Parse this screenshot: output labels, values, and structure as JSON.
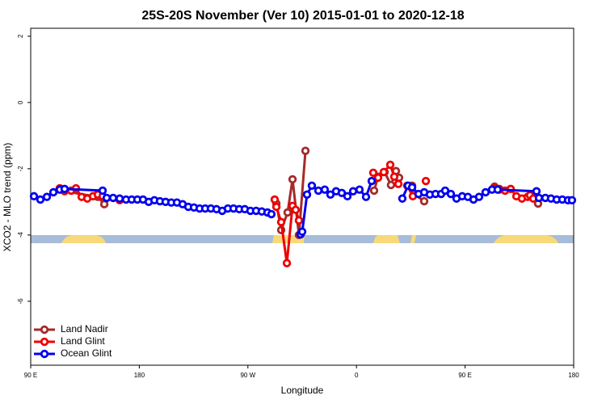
{
  "chart_data": {
    "type": "line",
    "title": "25S-20S November (Ver 10)   2015-01-01 to 2020-12-18",
    "x_label": "Longitude",
    "y_label": "XCO2 - MLO trend (ppm)",
    "xlim": [
      90,
      540
    ],
    "ylim": [
      -7.93,
      2.24
    ],
    "xticks": [
      {
        "value": 90,
        "label": "90 E"
      },
      180,
      {
        "value": 270,
        "label": "90 W"
      },
      {
        "value": 360,
        "label": "0"
      },
      {
        "value": 450,
        "label": "90 E"
      },
      {
        "value": 540,
        "label": "180"
      }
    ],
    "yticks": [
      2,
      0,
      -2,
      -4,
      -6
    ],
    "legend": "bottom-left",
    "series": [
      {
        "name": "Land Nadir",
        "color": "#a52a2a",
        "x": [
          114.1,
          118.1,
          145.6,
          151,
          null,
          293.6,
          297.6,
          302.9,
          307,
          312.3,
          317.7,
          null,
          374.6,
          377.9,
          383.3,
          388.6,
          392.7,
          395.3,
          null,
          406.1,
          407.5,
          416.1,
          null,
          474.4,
          478.4,
          null,
          506.5,
          510.5
        ],
        "values": [
          -2.59,
          -2.68,
          -2.85,
          -3.07,
          null,
          -3.05,
          -3.85,
          -3.32,
          -2.32,
          -4.0,
          -1.46,
          null,
          -2.66,
          -2.24,
          -2.1,
          -2.49,
          -2.07,
          -2.27,
          null,
          -2.51,
          -2.76,
          -2.98,
          null,
          -2.54,
          -2.61,
          null,
          -2.88,
          -3.05
        ]
      },
      {
        "name": "Land Glint",
        "color": "#ee0000",
        "x": [
          114.1,
          118.1,
          123.5,
          127.5,
          132.2,
          136.9,
          141.6,
          145.6,
          149.6,
          163.7,
          null,
          292.2,
          293.6,
          297.6,
          302.3,
          307,
          309.6,
          312.3,
          null,
          373.9,
          377.9,
          382.6,
          388,
          391.3,
          394.7,
          null,
          402,
          406.7,
          null,
          417.5,
          null,
          474.4,
          478.4,
          483.1,
          487.8,
          492.5,
          497.1,
          501.8,
          503.8,
          506.5
        ],
        "values": [
          -2.59,
          -2.66,
          -2.66,
          -2.59,
          -2.85,
          -2.9,
          -2.83,
          -2.78,
          -2.83,
          -2.95,
          null,
          -2.93,
          -3.15,
          -3.61,
          -4.85,
          -3.12,
          -3.24,
          -3.56,
          null,
          -2.12,
          -2.27,
          -2.1,
          -1.88,
          -2.24,
          -2.46,
          null,
          -2.51,
          -2.83,
          null,
          -2.37,
          null,
          -2.59,
          -2.63,
          -2.66,
          -2.61,
          -2.83,
          -2.9,
          -2.85,
          -2.8,
          -2.9
        ]
      },
      {
        "name": "Ocean Glint",
        "color": "#0000ee",
        "x": [
          92.7,
          98.0,
          103.4,
          108.8,
          114.1,
          118.1,
          149.6,
          153,
          158.3,
          163.7,
          169,
          173.7,
          178.4,
          183.1,
          187.8,
          192.5,
          197.1,
          201.8,
          206.5,
          211.2,
          215.9,
          220.6,
          225.3,
          230,
          234.6,
          239.3,
          244,
          248.7,
          253.4,
          258.1,
          262.8,
          267.4,
          272.1,
          276.8,
          281.5,
          286.2,
          289.5,
          null,
          313.7,
          315,
          319,
          323,
          328.4,
          333.7,
          338.4,
          343.1,
          347.8,
          352.5,
          357.2,
          362.5,
          367.9,
          372.6,
          null,
          398,
          402.7,
          406.1,
          411.4,
          416.1,
          420.8,
          425.5,
          430.2,
          433.5,
          438.2,
          442.9,
          447.6,
          452.3,
          457,
          461.6,
          467,
          472.3,
          477,
          509.2,
          511.2,
          516.5,
          521.2,
          525.9,
          530.6,
          535.3,
          538.6
        ],
        "values": [
          -2.83,
          -2.93,
          -2.85,
          -2.71,
          -2.63,
          -2.61,
          -2.66,
          -2.88,
          -2.88,
          -2.9,
          -2.93,
          -2.93,
          -2.93,
          -2.93,
          -3.0,
          -2.95,
          -2.98,
          -3.0,
          -3.02,
          -3.02,
          -3.07,
          -3.15,
          -3.17,
          -3.2,
          -3.2,
          -3.2,
          -3.22,
          -3.27,
          -3.2,
          -3.2,
          -3.22,
          -3.22,
          -3.27,
          -3.27,
          -3.29,
          -3.32,
          -3.37,
          null,
          -3.98,
          -3.9,
          -2.78,
          -2.51,
          -2.66,
          -2.63,
          -2.78,
          -2.68,
          -2.73,
          -2.83,
          -2.68,
          -2.63,
          -2.85,
          -2.37,
          null,
          -2.9,
          -2.51,
          -2.56,
          -2.76,
          -2.71,
          -2.78,
          -2.76,
          -2.76,
          -2.66,
          -2.76,
          -2.9,
          -2.83,
          -2.85,
          -2.93,
          -2.85,
          -2.71,
          -2.63,
          -2.63,
          -2.68,
          -2.88,
          -2.88,
          -2.9,
          -2.93,
          -2.93,
          -2.95,
          -2.95
        ]
      }
    ]
  }
}
